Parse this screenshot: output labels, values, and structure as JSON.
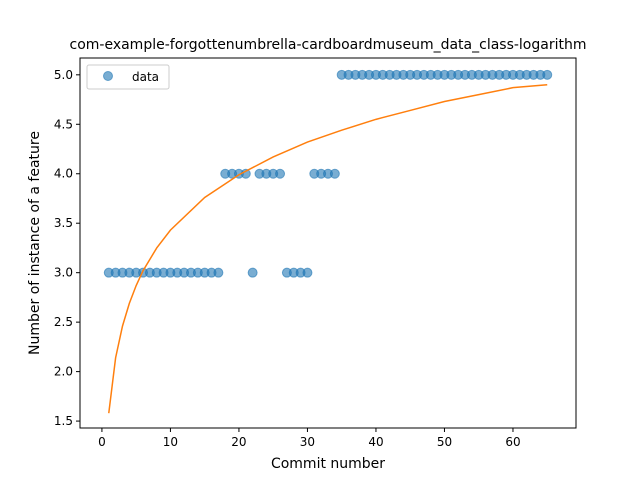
{
  "chart_data": {
    "type": "scatter",
    "title": "com-example-forgottenumbrella-cardboardmuseum_data_class-logarithm",
    "xlabel": "Commit number",
    "ylabel": "Number of instance of a feature",
    "xlim": [
      -3.2,
      69.2
    ],
    "ylim": [
      1.43,
      5.17
    ],
    "x_ticks": [
      0,
      10,
      20,
      30,
      40,
      50,
      60
    ],
    "y_ticks": [
      1.5,
      2.0,
      2.5,
      3.0,
      3.5,
      4.0,
      4.5,
      5.0
    ],
    "x_tick_labels": [
      "0",
      "10",
      "20",
      "30",
      "40",
      "50",
      "60"
    ],
    "y_tick_labels": [
      "1.5",
      "2.0",
      "2.5",
      "3.0",
      "3.5",
      "4.0",
      "4.5",
      "5.0"
    ],
    "legend": {
      "position": "top-left",
      "entries": [
        "data"
      ]
    },
    "grid": false,
    "series": [
      {
        "name": "data",
        "kind": "scatter",
        "color": "#1f77b4",
        "x": [
          1,
          2,
          3,
          4,
          5,
          6,
          7,
          8,
          9,
          10,
          11,
          12,
          13,
          14,
          15,
          16,
          17,
          18,
          19,
          20,
          21,
          22,
          23,
          24,
          25,
          26,
          27,
          28,
          29,
          30,
          31,
          32,
          33,
          34,
          35,
          36,
          37,
          38,
          39,
          40,
          41,
          42,
          43,
          44,
          45,
          46,
          47,
          48,
          49,
          50,
          51,
          52,
          53,
          54,
          55,
          56,
          57,
          58,
          59,
          60,
          61,
          62,
          63,
          64,
          65
        ],
        "y": [
          3,
          3,
          3,
          3,
          3,
          3,
          3,
          3,
          3,
          3,
          3,
          3,
          3,
          3,
          3,
          3,
          3,
          4,
          4,
          4,
          4,
          3,
          4,
          4,
          4,
          4,
          3,
          3,
          3,
          3,
          4,
          4,
          4,
          4,
          5,
          5,
          5,
          5,
          5,
          5,
          5,
          5,
          5,
          5,
          5,
          5,
          5,
          5,
          5,
          5,
          5,
          5,
          5,
          5,
          5,
          5,
          5,
          5,
          5,
          5,
          5,
          5,
          5,
          5,
          5
        ]
      },
      {
        "kind": "line",
        "color": "#ff7f0e",
        "x": [
          1,
          2,
          3,
          4,
          5,
          6,
          8,
          10,
          15,
          20,
          25,
          30,
          35,
          40,
          45,
          50,
          55,
          60,
          65
        ],
        "y": [
          1.58,
          2.14,
          2.46,
          2.69,
          2.87,
          3.02,
          3.25,
          3.43,
          3.76,
          3.99,
          4.17,
          4.32,
          4.44,
          4.55,
          4.64,
          4.73,
          4.8,
          4.87,
          4.9
        ]
      }
    ]
  }
}
